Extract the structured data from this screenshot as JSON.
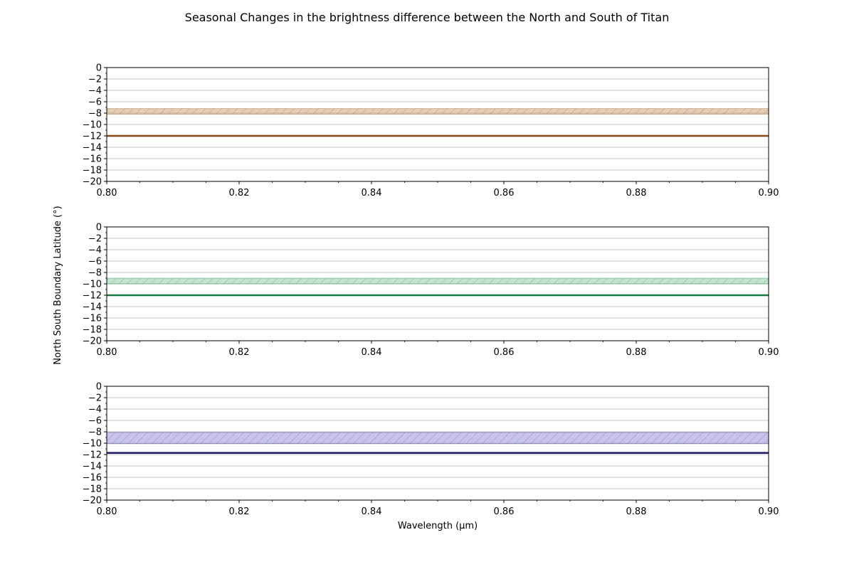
{
  "figure": {
    "title": "Seasonal Changes in the brightness difference between the North and South of Titan",
    "xlabel": "Wavelength (μm)",
    "ylabel": "North South Boundary Latitude (°)"
  },
  "chart_data": [
    {
      "type": "line",
      "xlim": [
        0.8,
        0.9
      ],
      "ylim": [
        -20,
        0
      ],
      "xticks": [
        "0.80",
        "0.82",
        "0.84",
        "0.86",
        "0.88",
        "0.90"
      ],
      "yticks": [
        "0",
        "−2",
        "−4",
        "−6",
        "−8",
        "−10",
        "−12",
        "−14",
        "−16",
        "−18",
        "−20"
      ],
      "grid": "horizontal",
      "series": [
        {
          "x": [
            0.8,
            0.9
          ],
          "y": [
            -12.0,
            -12.0
          ],
          "color": "#8b4513",
          "band": [
            -8.2,
            -7.2
          ],
          "band_color": "#d2a679"
        }
      ]
    },
    {
      "type": "line",
      "xlim": [
        0.8,
        0.9
      ],
      "ylim": [
        -20,
        0
      ],
      "xticks": [
        "0.80",
        "0.82",
        "0.84",
        "0.86",
        "0.88",
        "0.90"
      ],
      "yticks": [
        "0",
        "−2",
        "−4",
        "−6",
        "−8",
        "−10",
        "−12",
        "−14",
        "−16",
        "−18",
        "−20"
      ],
      "grid": "horizontal",
      "series": [
        {
          "x": [
            0.8,
            0.9
          ],
          "y": [
            -12.0,
            -12.0
          ],
          "color": "#1a7a45",
          "band": [
            -10.0,
            -9.0
          ],
          "band_color": "#8fd0a8"
        }
      ]
    },
    {
      "type": "line",
      "xlim": [
        0.8,
        0.9
      ],
      "ylim": [
        -20,
        0
      ],
      "xticks": [
        "0.80",
        "0.82",
        "0.84",
        "0.86",
        "0.88",
        "0.90"
      ],
      "yticks": [
        "0",
        "−2",
        "−4",
        "−6",
        "−8",
        "−10",
        "−12",
        "−14",
        "−16",
        "−18",
        "−20"
      ],
      "grid": "horizontal",
      "series": [
        {
          "x": [
            0.8,
            0.9
          ],
          "y": [
            -11.7,
            -11.7
          ],
          "color": "#1a1a66",
          "band": [
            -10.1,
            -8.1
          ],
          "band_color": "#9a92dc"
        }
      ]
    }
  ]
}
